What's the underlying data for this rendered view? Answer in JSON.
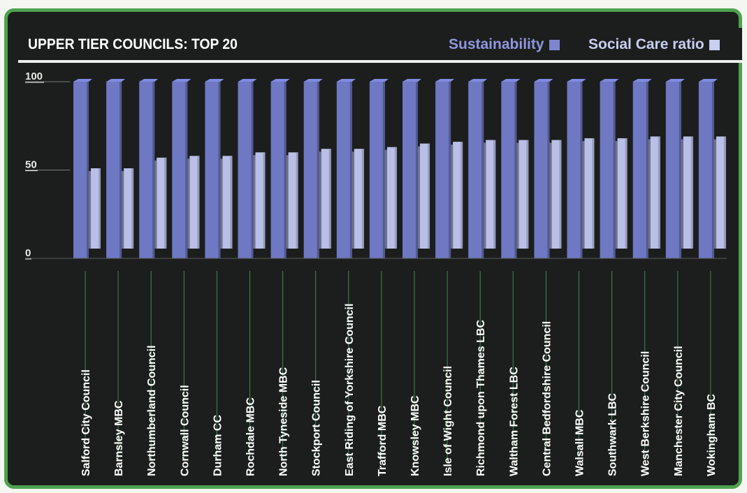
{
  "chart_data": {
    "type": "bar",
    "title": "UPPER TIER COUNCILS: TOP 20",
    "xlabel": "",
    "ylabel": "",
    "ylim": [
      0,
      100
    ],
    "yticks": [
      "100",
      "50",
      "0"
    ],
    "legend_position": "top-right",
    "categories": [
      "Salford City Council",
      "Barnsley MBC",
      "Northumberland Council",
      "Cornwall Council",
      "Durham CC",
      "Rochdale MBC",
      "North Tyneside MBC",
      "Stockport Council",
      "East Riding of Yorkshire Council",
      "Trafford MBC",
      "Knowsley MBC",
      "Isle of Wight Council",
      "Richmond upon Thames LBC",
      "Waltham Forest LBC",
      "Central Bedfordshire Council",
      "Walsall MBC",
      "Southwark LBC",
      "West Berkshire Council",
      "Manchester City Council",
      "Wokingham BC"
    ],
    "series": [
      {
        "name": "Sustainability",
        "color": "#6f78c3",
        "values": [
          100,
          100,
          100,
          100,
          100,
          100,
          100,
          100,
          100,
          100,
          100,
          100,
          100,
          100,
          100,
          100,
          100,
          100,
          100,
          100
        ]
      },
      {
        "name": "Social Care ratio",
        "color": "#b9bfe6",
        "values": [
          51,
          51,
          57,
          58,
          58,
          60,
          60,
          62,
          62,
          63,
          65,
          66,
          67,
          67,
          67,
          68,
          68,
          69,
          69,
          69
        ]
      }
    ]
  }
}
